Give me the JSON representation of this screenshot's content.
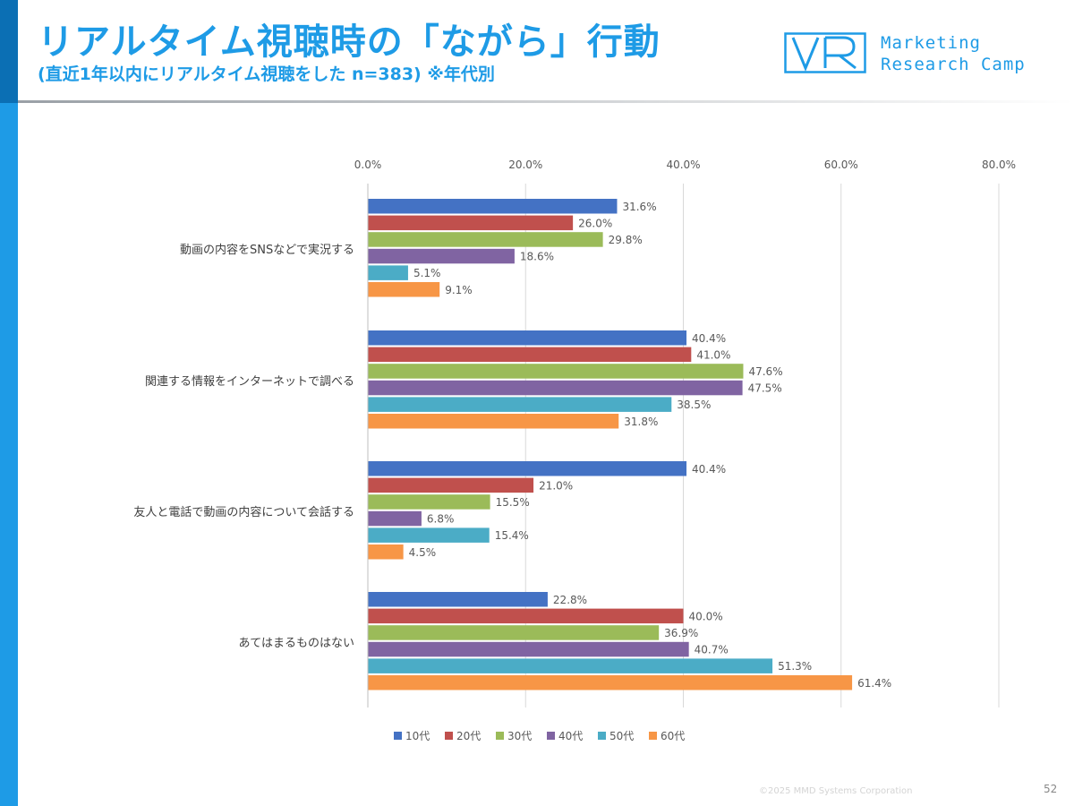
{
  "header": {
    "title": "リアルタイム視聴時の「ながら」行動",
    "subtitle": "(直近1年以内にリアルタイム視聴をした n=383) ※年代別"
  },
  "brand": {
    "line1": "Marketing",
    "line2": "Research Camp",
    "color": "#1e9be6"
  },
  "footer": {
    "copyright": "©2025 MMD Systems Corporation",
    "page_number": "52"
  },
  "chart_data": {
    "type": "bar",
    "orientation": "horizontal",
    "categories": [
      "動画の内容をSNSなどで実況する",
      "関連する情報をインターネットで調べる",
      "友人と電話で動画の内容について会話する",
      "あてはまるものはない"
    ],
    "series": [
      {
        "name": "10代",
        "color": "#4472c4",
        "values": [
          31.6,
          40.4,
          40.4,
          22.8
        ]
      },
      {
        "name": "20代",
        "color": "#c0504d",
        "values": [
          26.0,
          41.0,
          21.0,
          40.0
        ]
      },
      {
        "name": "30代",
        "color": "#9bbb59",
        "values": [
          29.8,
          47.6,
          15.5,
          36.9
        ]
      },
      {
        "name": "40代",
        "color": "#8064a2",
        "values": [
          18.6,
          47.5,
          6.8,
          40.7
        ]
      },
      {
        "name": "50代",
        "color": "#4bacc6",
        "values": [
          5.1,
          38.5,
          15.4,
          51.3
        ]
      },
      {
        "name": "60代",
        "color": "#f79646",
        "values": [
          9.1,
          31.8,
          4.5,
          61.4
        ]
      }
    ],
    "xlim": [
      0,
      80
    ],
    "ticks": [
      "0.0%",
      "20.0%",
      "40.0%",
      "60.0%",
      "80.0%"
    ],
    "tick_values": [
      0,
      20,
      40,
      60,
      80
    ],
    "value_suffix": "%",
    "grid": true,
    "legend_position": "bottom"
  }
}
